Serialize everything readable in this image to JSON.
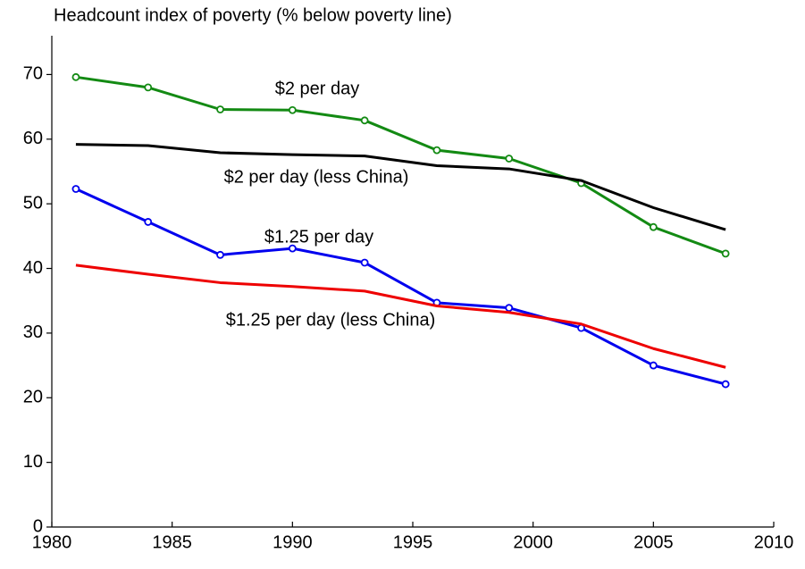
{
  "chart_data": {
    "type": "line",
    "y_label": "Headcount index of poverty (% below poverty line)",
    "x": [
      1981,
      1984,
      1987,
      1990,
      1993,
      1996,
      1999,
      2002,
      2005,
      2008
    ],
    "xlim": [
      1980,
      2010
    ],
    "xticks": [
      1980,
      1985,
      1990,
      1995,
      2000,
      2005,
      2010
    ],
    "ylim": [
      0,
      76
    ],
    "yticks": [
      0,
      10,
      20,
      30,
      40,
      50,
      60,
      70
    ],
    "grid": false,
    "series": [
      {
        "name": "$2 per day",
        "color": "#138a13",
        "markers": true,
        "values": [
          69.6,
          68.0,
          64.6,
          64.5,
          62.9,
          58.3,
          57.0,
          53.2,
          46.4,
          42.3
        ]
      },
      {
        "name": "$2 per day (less China)",
        "color": "#000000",
        "markers": false,
        "values": [
          59.2,
          59.0,
          57.9,
          57.6,
          57.4,
          55.9,
          55.4,
          53.6,
          49.4,
          46.0
        ]
      },
      {
        "name": "$1.25 per day",
        "color": "#0000ee",
        "markers": true,
        "values": [
          52.3,
          47.2,
          42.1,
          43.1,
          40.9,
          34.7,
          33.9,
          30.8,
          25.0,
          22.1
        ]
      },
      {
        "name": "$1.25 per day (less China)",
        "color": "#ee0000",
        "markers": false,
        "values": [
          40.5,
          39.1,
          37.8,
          37.2,
          36.5,
          34.2,
          33.2,
          31.4,
          27.6,
          24.7
        ]
      }
    ]
  }
}
